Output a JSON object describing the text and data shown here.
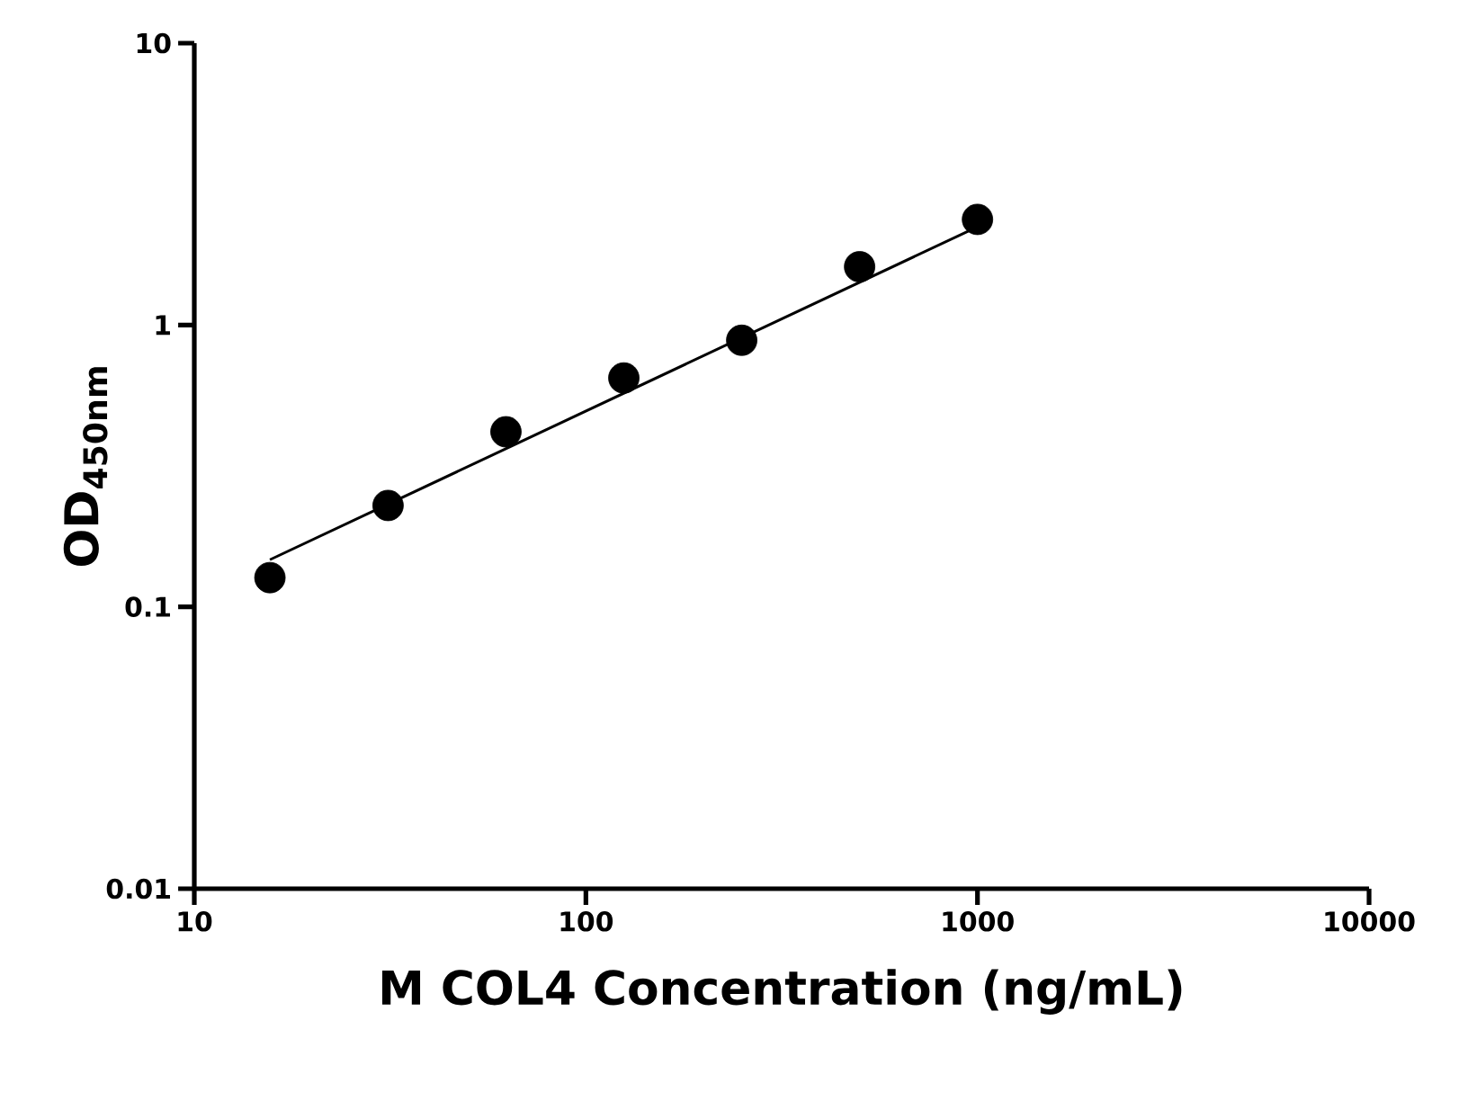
{
  "chart_data": {
    "type": "scatter",
    "xlabel": "M COL4 Concentration (ng/mL)",
    "ylabel": "OD$_{450nm}$",
    "log": "xy",
    "xlim": [
      10,
      10000
    ],
    "ylim": [
      0.01,
      10
    ],
    "xticks": [
      10,
      100,
      1000,
      10000
    ],
    "yticks": [
      0.01,
      0.1,
      1,
      10
    ],
    "series": [
      {
        "marker": "circle",
        "color": "#000000",
        "x": [
          15.6,
          31.25,
          62.5,
          125,
          250,
          500,
          1000
        ],
        "values": [
          0.127,
          0.229,
          0.418,
          0.649,
          0.883,
          1.61,
          2.37
        ]
      },
      {
        "type": "line",
        "marker": "none",
        "line_style": "solid",
        "color": "#000000",
        "x": [
          15.6,
          1000
        ],
        "values": [
          0.147,
          2.23
        ]
      }
    ]
  }
}
